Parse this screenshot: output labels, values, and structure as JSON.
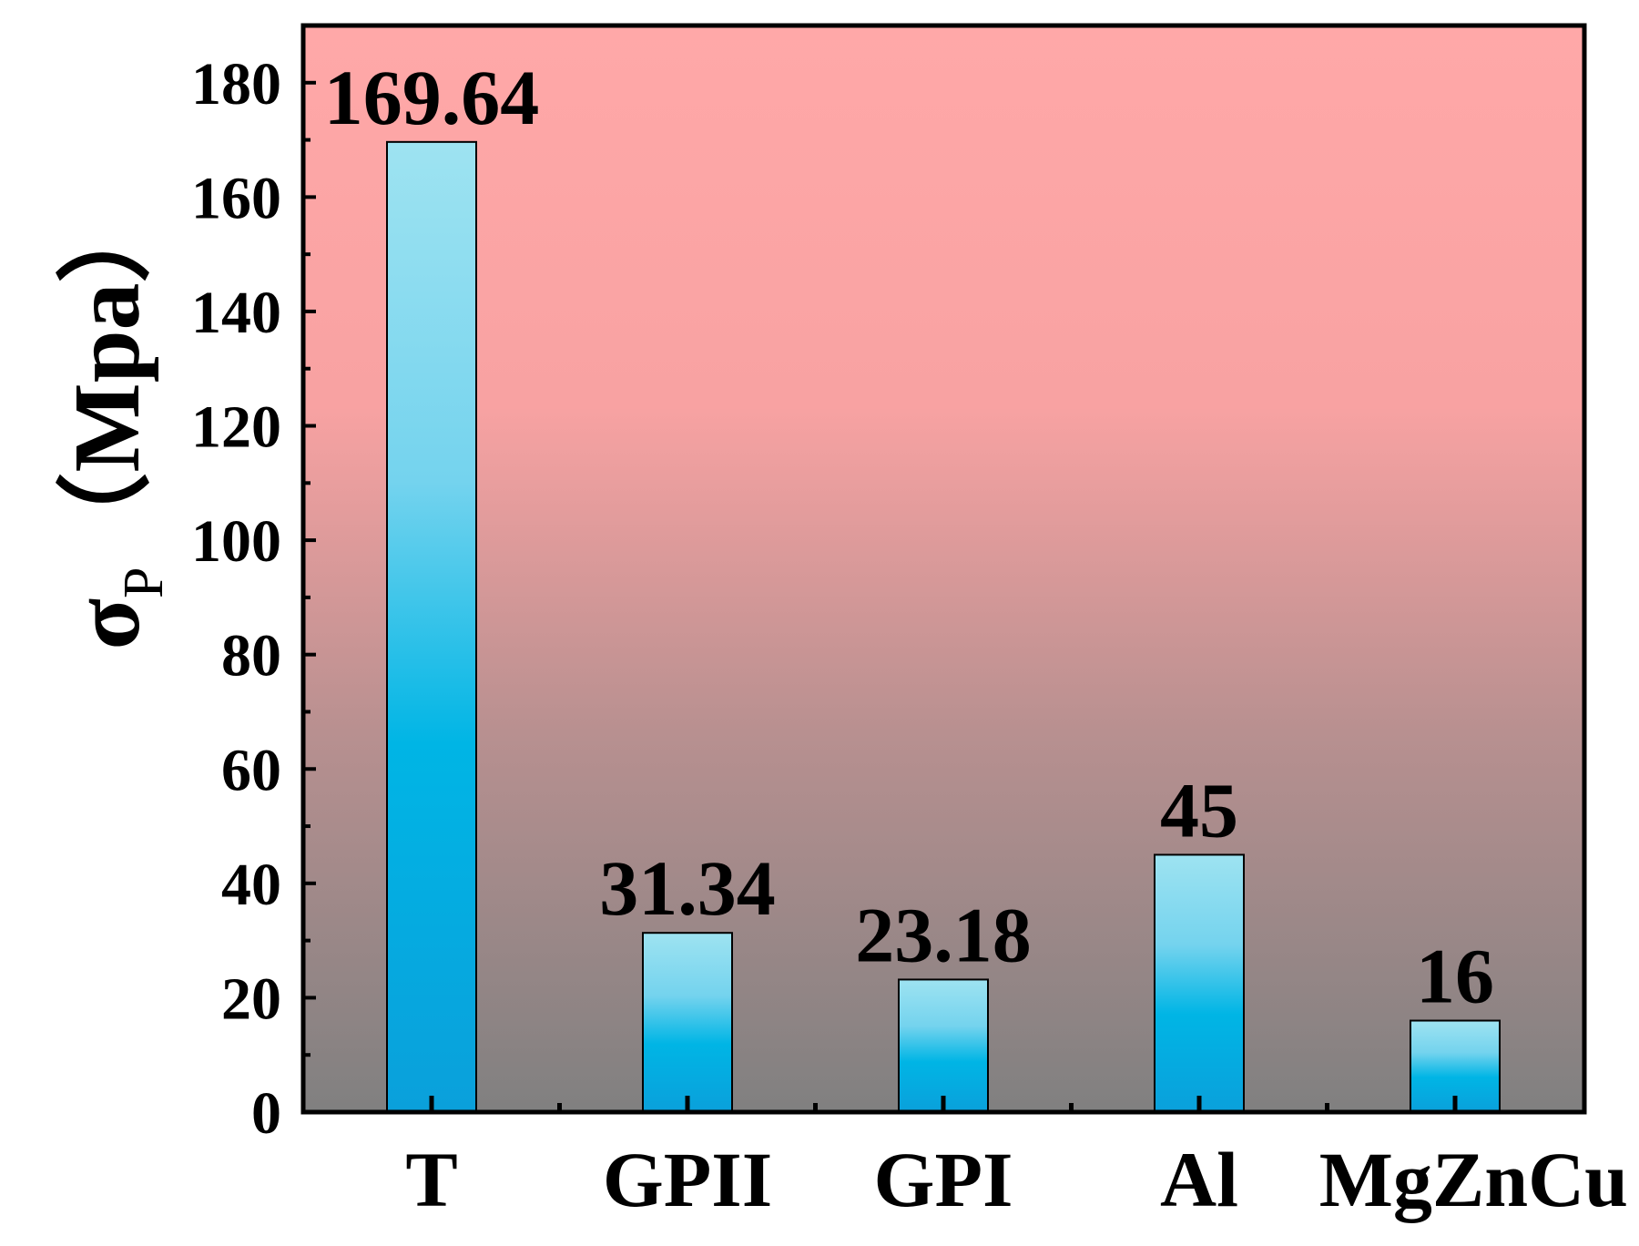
{
  "chart_data": {
    "type": "bar",
    "title": "",
    "xlabel": "",
    "ylabel": "σ",
    "ylabel_subscript": "P",
    "ylabel_unit": "（Mpa）",
    "categories": [
      "T",
      "GPII",
      "GPI",
      "Al",
      "MgZnCu"
    ],
    "values": [
      169.64,
      31.34,
      23.18,
      45,
      16
    ],
    "data_labels": [
      "169.64",
      "31.34",
      "23.18",
      "45",
      "16"
    ],
    "ylim": [
      0,
      190
    ],
    "yticks": [
      0,
      20,
      40,
      60,
      80,
      100,
      120,
      140,
      160,
      180
    ],
    "grid": false,
    "legend": "none",
    "colors": {
      "background_top": "#ffa8a8",
      "background_bottom": "#808080",
      "bar_top": "#9ee3f1",
      "bar_mid": "#00b5e5",
      "bar_bottom": "#0aa0db",
      "axis": "#000000"
    }
  }
}
